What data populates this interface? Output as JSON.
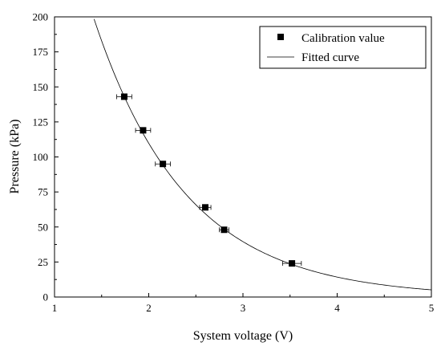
{
  "chart_data": {
    "type": "scatter",
    "title": "",
    "xlabel": "System voltage (V)",
    "ylabel": "Pressure (kPa)",
    "xlim": [
      1,
      5
    ],
    "ylim": [
      0,
      200
    ],
    "xticks": [
      "1",
      "2",
      "3",
      "4",
      "5"
    ],
    "yticks": [
      "0",
      "25",
      "50",
      "75",
      "100",
      "125",
      "150",
      "175",
      "200"
    ],
    "grid": false,
    "legend_position": "top-right",
    "series": [
      {
        "name": "Calibration value",
        "marker": "square",
        "color": "#000000",
        "x": [
          1.74,
          1.94,
          2.15,
          2.6,
          2.8,
          3.52
        ],
        "y": [
          143,
          119,
          95,
          64,
          48,
          24
        ],
        "x_error": [
          0.08,
          0.08,
          0.08,
          0.06,
          0.05,
          0.1
        ]
      },
      {
        "name": "Fitted curve",
        "kind": "line",
        "color": "#000000",
        "model": "exponential",
        "a": 845.8,
        "b": 1.021,
        "x_range": [
          1.42,
          5.0
        ]
      }
    ]
  }
}
